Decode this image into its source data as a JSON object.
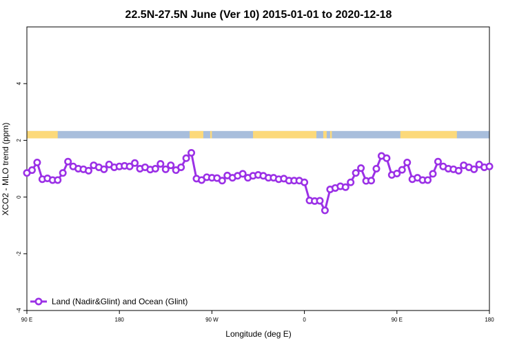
{
  "chart_data": {
    "type": "line",
    "title": "22.5N-27.5N June (Ver 10)   2015-01-01 to 2020-12-18",
    "xlabel": "Longitude (deg E)",
    "ylabel": "XCO2 - MLO trend (ppm)",
    "xlim": [
      -90,
      180
    ],
    "ylim": [
      -4,
      6
    ],
    "x_ticks": [
      -90,
      -36,
      18,
      72,
      126,
      180
    ],
    "x_tick_labels": [
      "90 E",
      "180",
      "90 W",
      "0",
      "90 E",
      "180"
    ],
    "y_ticks": [
      -4,
      -2,
      0,
      2,
      4
    ],
    "y_tick_labels": [
      "-4",
      "-2",
      "0",
      "2",
      "4"
    ],
    "grid": false,
    "legend_position": "bottom-left",
    "land_ocean_band": {
      "y_range": [
        2.07,
        2.33
      ],
      "ocean_color": "#a8bedc",
      "land_color": "#fcd97a",
      "land_segments": [
        [
          -90,
          -72
        ],
        [
          5,
          13
        ],
        [
          17,
          18
        ],
        [
          42,
          79
        ],
        [
          83,
          85
        ],
        [
          87,
          88
        ],
        [
          128,
          161
        ]
      ]
    },
    "series": [
      {
        "name": "Land (Nadir&Glint) and Ocean (Glint)",
        "color": "#9b30e6",
        "x": [
          -90,
          -87,
          -84,
          -81,
          -78,
          -75,
          -72,
          -69,
          -66,
          -63,
          -60,
          -57,
          -54,
          -51,
          -48,
          -45,
          -42,
          -39,
          -36,
          -33,
          -30,
          -27,
          -24,
          -21,
          -18,
          -15,
          -12,
          -9,
          -6,
          -3,
          0,
          3,
          6,
          9,
          12,
          15,
          18,
          21,
          24,
          27,
          30,
          33,
          36,
          39,
          42,
          45,
          48,
          51,
          54,
          57,
          60,
          63,
          66,
          69,
          72,
          75,
          78,
          81,
          84,
          87,
          90,
          93,
          96,
          99,
          102,
          105,
          108,
          111,
          114,
          117,
          120,
          123,
          126,
          129,
          132,
          135,
          138,
          141,
          144,
          147,
          150,
          153,
          156,
          159,
          162,
          165,
          168,
          171,
          174,
          177,
          180
        ],
        "values": [
          0.85,
          0.95,
          1.22,
          0.63,
          0.66,
          0.6,
          0.6,
          0.85,
          1.25,
          1.08,
          1.0,
          0.98,
          0.93,
          1.12,
          1.05,
          0.98,
          1.15,
          1.05,
          1.08,
          1.1,
          1.08,
          1.2,
          1.0,
          1.05,
          0.97,
          1.0,
          1.17,
          0.98,
          1.12,
          0.95,
          1.05,
          1.37,
          1.56,
          0.65,
          0.6,
          0.7,
          0.68,
          0.67,
          0.58,
          0.76,
          0.68,
          0.75,
          0.82,
          0.68,
          0.75,
          0.78,
          0.75,
          0.68,
          0.68,
          0.63,
          0.65,
          0.58,
          0.58,
          0.58,
          0.52,
          -0.12,
          -0.14,
          -0.13,
          -0.47,
          0.27,
          0.32,
          0.38,
          0.35,
          0.52,
          0.85,
          1.02,
          0.57,
          0.58,
          1.0,
          1.45,
          1.37,
          0.78,
          0.83,
          0.96,
          1.22,
          0.63,
          0.68,
          0.6,
          0.6,
          0.82,
          1.25,
          1.08,
          1.0,
          0.98,
          0.93,
          1.12,
          1.05,
          0.98,
          1.15,
          1.05,
          1.08
        ]
      }
    ]
  }
}
